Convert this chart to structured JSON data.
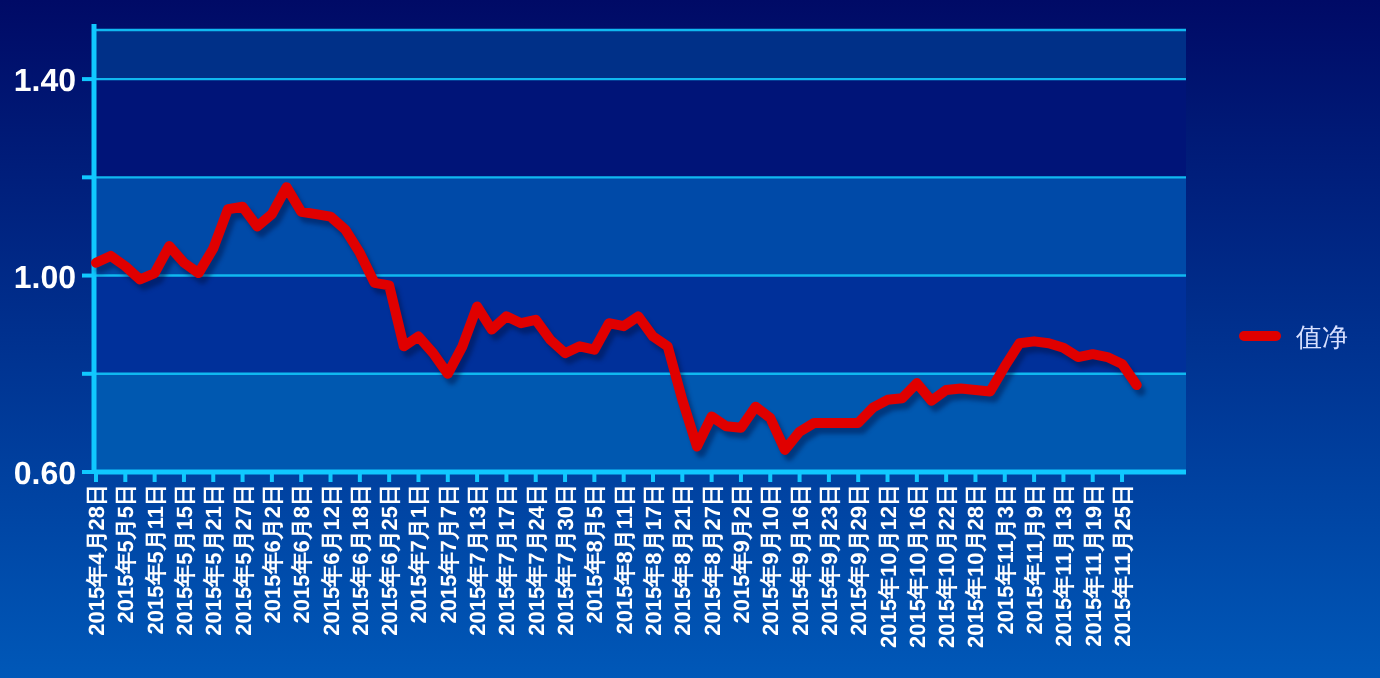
{
  "chart_data": {
    "type": "line",
    "categories": [
      "2015年4月28日",
      null,
      "2015年5月5日",
      null,
      "2015年5月11日",
      null,
      "2015年5月15日",
      null,
      "2015年5月21日",
      null,
      "2015年5月27日",
      null,
      "2015年6月2日",
      null,
      "2015年6月8日",
      null,
      "2015年6月12日",
      null,
      "2015年6月18日",
      null,
      "2015年6月25日",
      null,
      "2015年7月1日",
      null,
      "2015年7月7日",
      null,
      "2015年7月13日",
      null,
      "2015年7月17日",
      null,
      "2015年7月24日",
      null,
      "2015年7月30日",
      null,
      "2015年8月5日",
      null,
      "2015年8月11日",
      null,
      "2015年8月17日",
      null,
      "2015年8月21日",
      null,
      "2015年8月27日",
      null,
      "2015年9月2日",
      null,
      "2015年9月10日",
      null,
      "2015年9月16日",
      null,
      "2015年9月23日",
      null,
      "2015年9月29日",
      null,
      "2015年10月12日",
      null,
      "2015年10月16日",
      null,
      "2015年10月22日",
      null,
      "2015年10月28日",
      null,
      "2015年11月3日",
      null,
      "2015年11月9日",
      null,
      "2015年11月13日",
      null,
      "2015年11月19日",
      null,
      "2015年11月25日",
      null
    ],
    "series": [
      {
        "name": "值净",
        "color": "#e00000",
        "values": [
          1.026,
          1.04,
          1.019,
          0.992,
          1.005,
          1.06,
          1.026,
          1.005,
          1.055,
          1.135,
          1.14,
          1.1,
          1.125,
          1.18,
          1.13,
          1.125,
          1.12,
          1.094,
          1.046,
          0.985,
          0.98,
          0.856,
          0.876,
          0.842,
          0.8,
          0.856,
          0.937,
          0.89,
          0.917,
          0.903,
          0.91,
          0.869,
          0.842,
          0.856,
          0.849,
          0.903,
          0.897,
          0.917,
          0.876,
          0.856,
          0.747,
          0.652,
          0.713,
          0.693,
          0.69,
          0.733,
          0.71,
          0.645,
          0.682,
          0.7,
          0.7,
          0.7,
          0.7,
          0.731,
          0.747,
          0.75,
          0.781,
          0.745,
          0.767,
          0.77,
          0.767,
          0.764,
          0.815,
          0.862,
          0.866,
          0.862,
          0.853,
          0.834,
          0.84,
          0.834,
          0.82,
          0.777
        ]
      }
    ],
    "ylim": [
      0.6,
      1.5
    ],
    "yticks": [
      {
        "value": 0.6,
        "label": "0.60"
      },
      {
        "value": 0.8,
        "label": null
      },
      {
        "value": 1.0,
        "label": "1.00"
      },
      {
        "value": 1.2,
        "label": null
      },
      {
        "value": 1.4,
        "label": "1.40"
      }
    ],
    "bands": [
      {
        "axis": "y",
        "from": 0.6,
        "to": 0.8,
        "color": "#0058b0"
      },
      {
        "axis": "y",
        "from": 0.8,
        "to": 1.0,
        "color": "#00309a"
      },
      {
        "axis": "y",
        "from": 1.0,
        "to": 1.2,
        "color": "#004aa8"
      },
      {
        "axis": "y",
        "from": 1.2,
        "to": 1.4,
        "color": "#001478"
      },
      {
        "axis": "y",
        "from": 1.4,
        "to": 1.5,
        "color": "#003088"
      }
    ],
    "grid": "y",
    "legend": "right",
    "marker": "none",
    "line_style": "solid"
  }
}
